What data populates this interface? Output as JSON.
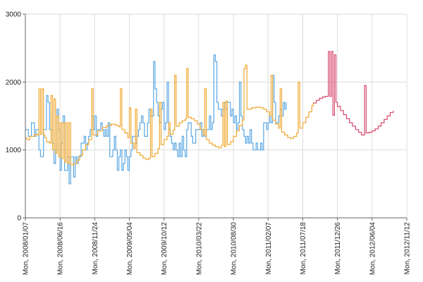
{
  "chart_data": {
    "type": "line",
    "title": "",
    "xlabel": "",
    "ylabel": "",
    "ylim": [
      0,
      3000
    ],
    "y_ticks": [
      0,
      1000,
      2000,
      3000
    ],
    "grid": true,
    "x_tick_labels": [
      "Mon, 2008/01/07",
      "Mon, 2008/06/16",
      "Mon, 2008/11/24",
      "Mon, 2009/05/04",
      "Mon, 2009/10/12",
      "Mon, 2010/03/22",
      "Mon, 2010/08/30",
      "Mon, 2011/02/07",
      "Mon, 2011/07/18",
      "Mon, 2011/12/26",
      "Mon, 2012/06/04",
      "Mon, 2012/11/12"
    ],
    "x_range_weeks": [
      0,
      253
    ],
    "series": [
      {
        "name": "",
        "color": "#5aa7e3",
        "step": true,
        "points": [
          [
            0,
            1300
          ],
          [
            2,
            1200
          ],
          [
            4,
            1400
          ],
          [
            6,
            1200
          ],
          [
            7,
            1300
          ],
          [
            9,
            1000
          ],
          [
            10,
            900
          ],
          [
            12,
            1300
          ],
          [
            14,
            1800
          ],
          [
            15,
            1700
          ],
          [
            16,
            1300
          ],
          [
            18,
            1100
          ],
          [
            19,
            800
          ],
          [
            20,
            1000
          ],
          [
            21,
            1600
          ],
          [
            22,
            1300
          ],
          [
            23,
            700
          ],
          [
            24,
            1100
          ],
          [
            25,
            1500
          ],
          [
            26,
            700
          ],
          [
            28,
            900
          ],
          [
            29,
            500
          ],
          [
            30,
            900
          ],
          [
            32,
            600
          ],
          [
            33,
            900
          ],
          [
            34,
            800
          ],
          [
            35,
            900
          ],
          [
            37,
            1100
          ],
          [
            39,
            1200
          ],
          [
            40,
            1000
          ],
          [
            41,
            1100
          ],
          [
            42,
            1200
          ],
          [
            43,
            1300
          ],
          [
            44,
            1500
          ],
          [
            45,
            1300
          ],
          [
            46,
            1500
          ],
          [
            47,
            1200
          ],
          [
            48,
            1300
          ],
          [
            50,
            1400
          ],
          [
            51,
            1300
          ],
          [
            52,
            1200
          ],
          [
            53,
            1300
          ],
          [
            54,
            1200
          ],
          [
            55,
            1400
          ],
          [
            56,
            900
          ],
          [
            58,
            1000
          ],
          [
            59,
            1200
          ],
          [
            60,
            1000
          ],
          [
            61,
            700
          ],
          [
            62,
            900
          ],
          [
            63,
            1000
          ],
          [
            64,
            700
          ],
          [
            65,
            800
          ],
          [
            66,
            1000
          ],
          [
            67,
            900
          ],
          [
            68,
            700
          ],
          [
            69,
            900
          ],
          [
            70,
            1000
          ],
          [
            71,
            1200
          ],
          [
            73,
            1100
          ],
          [
            74,
            1200
          ],
          [
            75,
            1300
          ],
          [
            76,
            1400
          ],
          [
            77,
            1500
          ],
          [
            78,
            1400
          ],
          [
            79,
            1200
          ],
          [
            81,
            1400
          ],
          [
            82,
            1600
          ],
          [
            83,
            1500
          ],
          [
            85,
            2300
          ],
          [
            86,
            1900
          ],
          [
            87,
            1700
          ],
          [
            88,
            1500
          ],
          [
            89,
            1400
          ],
          [
            90,
            1600
          ],
          [
            91,
            1700
          ],
          [
            92,
            1300
          ],
          [
            93,
            1400
          ],
          [
            94,
            2000
          ],
          [
            95,
            1300
          ],
          [
            96,
            1200
          ],
          [
            97,
            1100
          ],
          [
            98,
            1000
          ],
          [
            99,
            1100
          ],
          [
            100,
            1000
          ],
          [
            101,
            900
          ],
          [
            102,
            1100
          ],
          [
            103,
            900
          ],
          [
            104,
            1200
          ],
          [
            105,
            1000
          ],
          [
            106,
            900
          ],
          [
            107,
            1300
          ],
          [
            108,
            1400
          ],
          [
            110,
            1200
          ],
          [
            111,
            1100
          ],
          [
            113,
            1300
          ],
          [
            114,
            1300
          ],
          [
            116,
            1400
          ],
          [
            117,
            1200
          ],
          [
            118,
            1300
          ],
          [
            119,
            1200
          ],
          [
            120,
            1300
          ],
          [
            122,
            1500
          ],
          [
            123,
            1300
          ],
          [
            124,
            1400
          ],
          [
            125,
            2400
          ],
          [
            126,
            2300
          ],
          [
            127,
            1700
          ],
          [
            128,
            1600
          ],
          [
            130,
            1500
          ],
          [
            131,
            1600
          ],
          [
            132,
            1700
          ],
          [
            133,
            1600
          ],
          [
            134,
            1700
          ],
          [
            136,
            1500
          ],
          [
            137,
            1600
          ],
          [
            138,
            1400
          ],
          [
            139,
            1500
          ],
          [
            140,
            1300
          ],
          [
            141,
            1400
          ],
          [
            142,
            2000
          ],
          [
            143,
            1500
          ],
          [
            144,
            1300
          ],
          [
            145,
            1200
          ],
          [
            146,
            1100
          ],
          [
            147,
            1200
          ],
          [
            148,
            1100
          ],
          [
            149,
            1300
          ],
          [
            150,
            1100
          ],
          [
            151,
            1000
          ],
          [
            153,
            1100
          ],
          [
            154,
            1000
          ],
          [
            156,
            1100
          ],
          [
            157,
            1000
          ],
          [
            158,
            1400
          ],
          [
            160,
            1300
          ],
          [
            161,
            1400
          ],
          [
            162,
            1500
          ],
          [
            163,
            1400
          ],
          [
            164,
            2100
          ],
          [
            165,
            1700
          ],
          [
            166,
            1400
          ],
          [
            168,
            1500
          ],
          [
            169,
            1600
          ],
          [
            170,
            1500
          ],
          [
            171,
            1700
          ],
          [
            172,
            1600
          ],
          [
            173,
            1700
          ]
        ]
      },
      {
        "name": "",
        "color": "#f0a830",
        "step": true,
        "points": [
          [
            0,
            1180
          ],
          [
            1,
            1150
          ],
          [
            3,
            1200
          ],
          [
            6,
            1230
          ],
          [
            8,
            1220
          ],
          [
            9,
            1900
          ],
          [
            10,
            1230
          ],
          [
            11,
            1900
          ],
          [
            12,
            1220
          ],
          [
            13,
            1180
          ],
          [
            14,
            1120
          ],
          [
            16,
            1100
          ],
          [
            17,
            1800
          ],
          [
            18,
            1000
          ],
          [
            19,
            1750
          ],
          [
            20,
            950
          ],
          [
            21,
            1500
          ],
          [
            22,
            900
          ],
          [
            23,
            1400
          ],
          [
            24,
            870
          ],
          [
            25,
            1400
          ],
          [
            26,
            820
          ],
          [
            27,
            1400
          ],
          [
            28,
            800
          ],
          [
            29,
            1400
          ],
          [
            30,
            780
          ],
          [
            32,
            800
          ],
          [
            34,
            850
          ],
          [
            36,
            920
          ],
          [
            38,
            1000
          ],
          [
            40,
            1080
          ],
          [
            42,
            1150
          ],
          [
            44,
            1900
          ],
          [
            45,
            1220
          ],
          [
            48,
            1280
          ],
          [
            51,
            1330
          ],
          [
            54,
            1360
          ],
          [
            57,
            1380
          ],
          [
            60,
            1360
          ],
          [
            62,
            1340
          ],
          [
            63,
            1900
          ],
          [
            64,
            1300
          ],
          [
            66,
            1250
          ],
          [
            68,
            1180
          ],
          [
            69,
            1620
          ],
          [
            70,
            1100
          ],
          [
            72,
            1020
          ],
          [
            73,
            1600
          ],
          [
            74,
            960
          ],
          [
            76,
            920
          ],
          [
            78,
            880
          ],
          [
            80,
            860
          ],
          [
            82,
            880
          ],
          [
            83,
            1600
          ],
          [
            84,
            900
          ],
          [
            86,
            950
          ],
          [
            88,
            1020
          ],
          [
            89,
            1700
          ],
          [
            90,
            1080
          ],
          [
            92,
            1150
          ],
          [
            94,
            1200
          ],
          [
            95,
            1400
          ],
          [
            96,
            1230
          ],
          [
            98,
            1290
          ],
          [
            99,
            2100
          ],
          [
            100,
            1350
          ],
          [
            102,
            1400
          ],
          [
            104,
            1430
          ],
          [
            106,
            1460
          ],
          [
            107,
            2200
          ],
          [
            108,
            1480
          ],
          [
            110,
            1460
          ],
          [
            112,
            1430
          ],
          [
            114,
            1380
          ],
          [
            116,
            1300
          ],
          [
            118,
            1220
          ],
          [
            119,
            1900
          ],
          [
            120,
            1150
          ],
          [
            122,
            1100
          ],
          [
            124,
            1070
          ],
          [
            126,
            1050
          ],
          [
            128,
            1030
          ],
          [
            130,
            1070
          ],
          [
            131,
            1700
          ],
          [
            132,
            1050
          ],
          [
            133,
            1720
          ],
          [
            134,
            1080
          ],
          [
            136,
            1120
          ],
          [
            138,
            1200
          ],
          [
            140,
            1280
          ],
          [
            142,
            1360
          ],
          [
            144,
            1440
          ],
          [
            145,
            2200
          ],
          [
            146,
            2250
          ],
          [
            147,
            1600
          ],
          [
            150,
            1620
          ],
          [
            153,
            1630
          ],
          [
            156,
            1620
          ],
          [
            158,
            1600
          ],
          [
            160,
            1560
          ],
          [
            162,
            1500
          ],
          [
            163,
            2100
          ],
          [
            164,
            1440
          ],
          [
            166,
            1380
          ],
          [
            168,
            1320
          ],
          [
            169,
            1900
          ],
          [
            170,
            1260
          ],
          [
            172,
            1220
          ],
          [
            174,
            1180
          ],
          [
            176,
            1170
          ],
          [
            178,
            1200
          ],
          [
            180,
            1250
          ],
          [
            181,
            2000
          ],
          [
            182,
            1320
          ],
          [
            184,
            1400
          ],
          [
            186,
            1480
          ],
          [
            188,
            1560
          ],
          [
            190,
            1650
          ],
          [
            191,
            1700
          ]
        ]
      },
      {
        "name": "",
        "color": "#d8486e",
        "step": true,
        "points": [
          [
            191,
            1690
          ],
          [
            193,
            1730
          ],
          [
            195,
            1760
          ],
          [
            197,
            1780
          ],
          [
            199,
            1790
          ],
          [
            201,
            2450
          ],
          [
            202,
            1790
          ],
          [
            203,
            2450
          ],
          [
            204,
            1510
          ],
          [
            205,
            2400
          ],
          [
            206,
            1700
          ],
          [
            207,
            1640
          ],
          [
            209,
            1580
          ],
          [
            211,
            1520
          ],
          [
            213,
            1460
          ],
          [
            215,
            1400
          ],
          [
            217,
            1350
          ],
          [
            219,
            1300
          ],
          [
            221,
            1260
          ],
          [
            223,
            1220
          ],
          [
            225,
            1950
          ],
          [
            226,
            1250
          ],
          [
            228,
            1260
          ],
          [
            230,
            1280
          ],
          [
            232,
            1310
          ],
          [
            234,
            1350
          ],
          [
            236,
            1400
          ],
          [
            238,
            1450
          ],
          [
            240,
            1500
          ],
          [
            242,
            1550
          ],
          [
            244,
            1580
          ]
        ]
      }
    ]
  }
}
